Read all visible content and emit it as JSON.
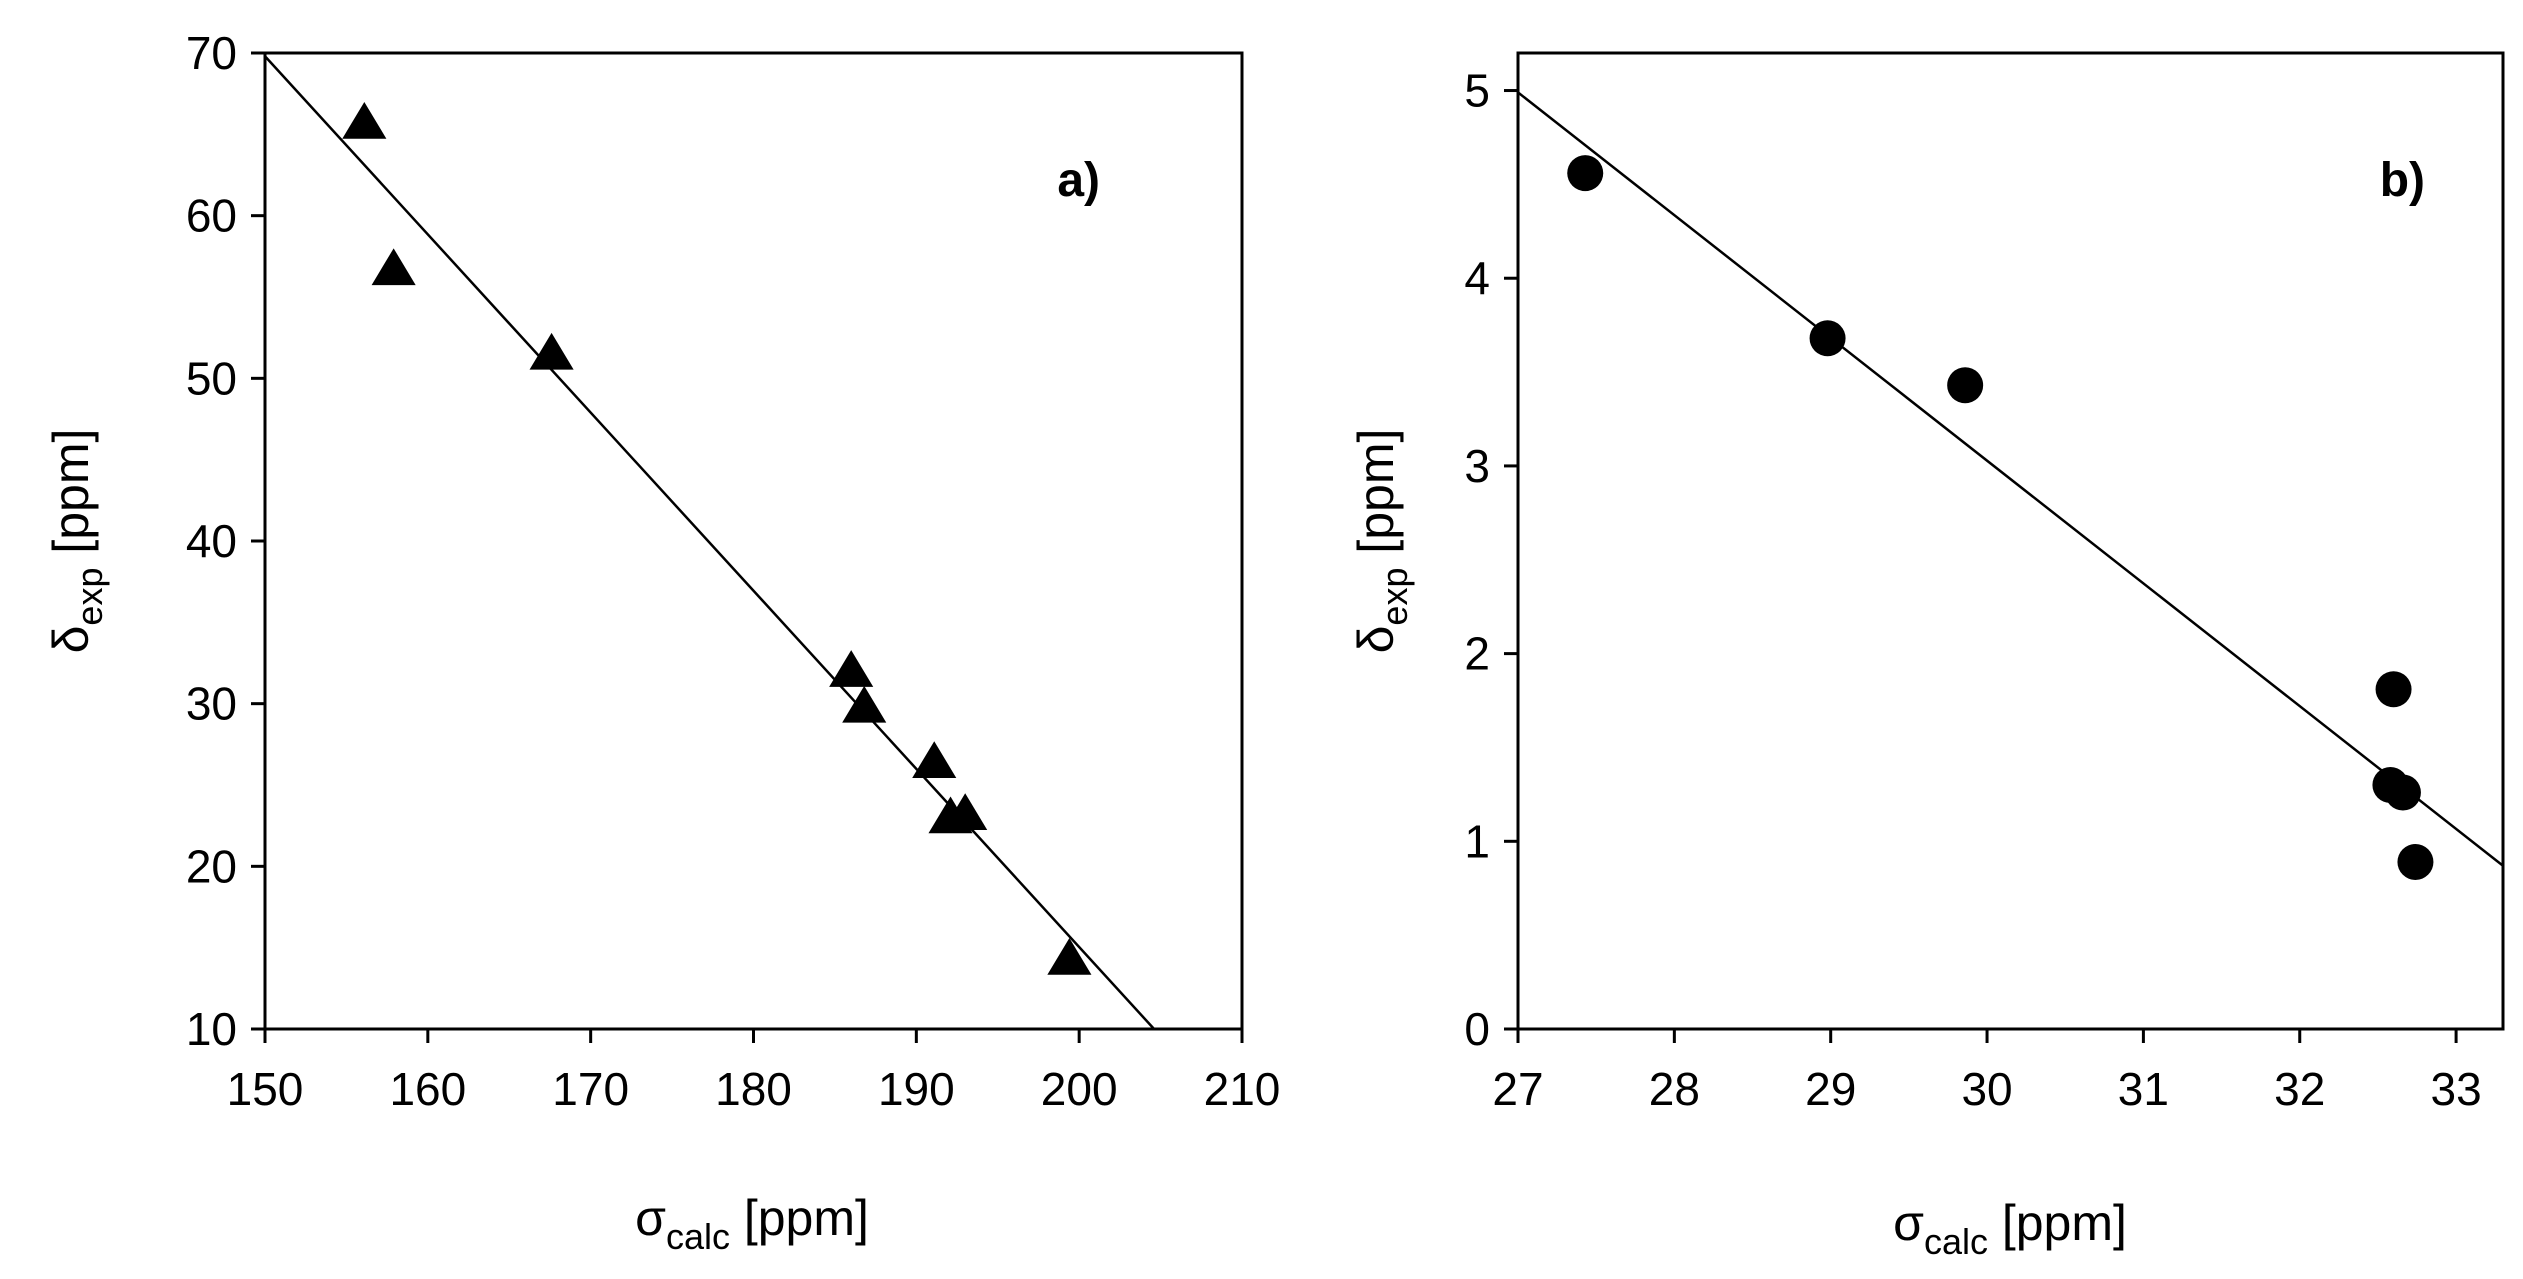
{
  "chart_data": [
    {
      "type": "scatter",
      "panel_label": "a)",
      "marker": "triangle",
      "xlabel": {
        "symbol": "σ",
        "sub": "calc",
        "unit": " [ppm]"
      },
      "ylabel": {
        "symbol": "δ",
        "sub": "exp",
        "unit": " [ppm]"
      },
      "xlim": [
        150,
        210
      ],
      "ylim": [
        10,
        70
      ],
      "xticks": [
        150,
        160,
        170,
        180,
        190,
        200,
        210
      ],
      "yticks": [
        10,
        20,
        30,
        40,
        50,
        60,
        70
      ],
      "points": [
        {
          "x": 156.1,
          "y": 65.7
        },
        {
          "x": 157.9,
          "y": 56.7
        },
        {
          "x": 167.6,
          "y": 51.5
        },
        {
          "x": 186.0,
          "y": 32.0
        },
        {
          "x": 186.8,
          "y": 29.8
        },
        {
          "x": 191.1,
          "y": 26.4
        },
        {
          "x": 192.1,
          "y": 23.0
        },
        {
          "x": 193.0,
          "y": 23.2
        },
        {
          "x": 199.4,
          "y": 14.3
        }
      ],
      "fit": {
        "x1": 150,
        "y1": 69.8,
        "x2": 204.6,
        "y2": 10
      }
    },
    {
      "type": "scatter",
      "panel_label": "b)",
      "marker": "circle",
      "xlabel": {
        "symbol": "σ",
        "sub": "calc",
        "unit": " [ppm]"
      },
      "ylabel": {
        "symbol": "δ",
        "sub": "exp",
        "unit": " [ppm]"
      },
      "xlim": [
        27,
        33.3
      ],
      "ylim": [
        0,
        5.2
      ],
      "xticks": [
        27,
        28,
        29,
        30,
        31,
        32,
        33
      ],
      "yticks": [
        0,
        1,
        2,
        3,
        4,
        5
      ],
      "points": [
        {
          "x": 27.43,
          "y": 4.56
        },
        {
          "x": 28.98,
          "y": 3.68
        },
        {
          "x": 29.86,
          "y": 3.43
        },
        {
          "x": 32.6,
          "y": 1.81
        },
        {
          "x": 32.58,
          "y": 1.3
        },
        {
          "x": 32.66,
          "y": 1.26
        },
        {
          "x": 32.74,
          "y": 0.89
        }
      ],
      "fit": {
        "x1": 27,
        "y1": 4.99,
        "x2": 33.3,
        "y2": 0.87
      }
    }
  ]
}
